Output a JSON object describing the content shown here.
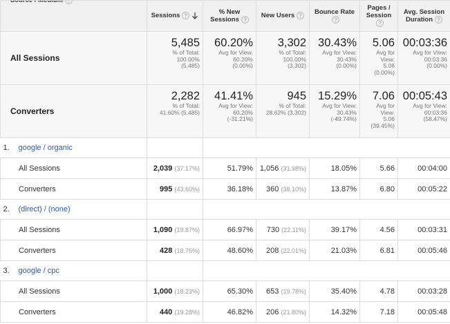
{
  "header": {
    "columns": [
      "Source / Medium",
      "Sessions",
      "% New Sessions",
      "New Users",
      "Bounce Rate",
      "Pages / Session",
      "Avg. Session Duration"
    ]
  },
  "summary": [
    {
      "label": "All Sessions",
      "cells": [
        {
          "main": "5,485",
          "sub": [
            "% of Total:",
            "100.00%",
            "(5,485)"
          ]
        },
        {
          "main": "60.20%",
          "sub": [
            "Avg for View:",
            "60.20%",
            "(0.00%)"
          ]
        },
        {
          "main": "3,302",
          "sub": [
            "% of Total:",
            "100.00%",
            "(3,302)"
          ]
        },
        {
          "main": "30.43%",
          "sub": [
            "Avg for View:",
            "30.43%",
            "(0.00%)"
          ]
        },
        {
          "main": "5.06",
          "sub": [
            "Avg for",
            "View:",
            "5.06",
            "(0.00%)"
          ]
        },
        {
          "main": "00:03:36",
          "sub": [
            "Avg for View:",
            "00:03:36",
            "(0.00%)"
          ]
        }
      ]
    },
    {
      "label": "Converters",
      "cells": [
        {
          "main": "2,282",
          "sub": [
            "% of Total:",
            "41.60% (5,485)"
          ]
        },
        {
          "main": "41.41%",
          "sub": [
            "Avg for View:",
            "60.20%",
            "(-31.21%)"
          ]
        },
        {
          "main": "945",
          "sub": [
            "% of Total:",
            "28.62% (3,302)"
          ]
        },
        {
          "main": "15.29%",
          "sub": [
            "Avg for View:",
            "30.43%",
            "(-49.74%)"
          ]
        },
        {
          "main": "7.06",
          "sub": [
            "Avg for",
            "View:",
            "5.06",
            "(39.45%)"
          ]
        },
        {
          "main": "00:05:43",
          "sub": [
            "Avg for View:",
            "00:03:36",
            "(58.47%)"
          ]
        }
      ]
    }
  ],
  "groups": [
    {
      "index": "1.",
      "source": "google / organic",
      "rows": [
        {
          "label": "All Sessions",
          "cells": [
            {
              "value": "2,039",
              "pct": "(37.17%)"
            },
            {
              "value": "51.79%"
            },
            {
              "value": "1,056",
              "pct": "(31.98%)"
            },
            {
              "value": "18.05%"
            },
            {
              "value": "5.66"
            },
            {
              "value": "00:04:00"
            }
          ]
        },
        {
          "label": "Converters",
          "cells": [
            {
              "value": "995",
              "pct": "(43.60%)"
            },
            {
              "value": "36.18%"
            },
            {
              "value": "360",
              "pct": "(38.10%)"
            },
            {
              "value": "13.87%"
            },
            {
              "value": "6.80"
            },
            {
              "value": "00:05:22"
            }
          ]
        }
      ]
    },
    {
      "index": "2.",
      "source": "(direct) / (none)",
      "rows": [
        {
          "label": "All Sessions",
          "cells": [
            {
              "value": "1,090",
              "pct": "(19.87%)"
            },
            {
              "value": "66.97%"
            },
            {
              "value": "730",
              "pct": "(22.11%)"
            },
            {
              "value": "39.17%"
            },
            {
              "value": "4.56"
            },
            {
              "value": "00:03:31"
            }
          ]
        },
        {
          "label": "Converters",
          "cells": [
            {
              "value": "428",
              "pct": "(18.76%)"
            },
            {
              "value": "48.60%"
            },
            {
              "value": "208",
              "pct": "(22.01%)"
            },
            {
              "value": "21.03%"
            },
            {
              "value": "6.81"
            },
            {
              "value": "00:05:46"
            }
          ]
        }
      ]
    },
    {
      "index": "3.",
      "source": "google / cpc",
      "rows": [
        {
          "label": "All Sessions",
          "cells": [
            {
              "value": "1,000",
              "pct": "(18.23%)"
            },
            {
              "value": "65.30%"
            },
            {
              "value": "653",
              "pct": "(19.78%)"
            },
            {
              "value": "35.40%"
            },
            {
              "value": "4.78"
            },
            {
              "value": "00:03:28"
            }
          ]
        },
        {
          "label": "Converters",
          "cells": [
            {
              "value": "440",
              "pct": "(19.28%)"
            },
            {
              "value": "46.82%"
            },
            {
              "value": "206",
              "pct": "(21.80%)"
            },
            {
              "value": "14.32%"
            },
            {
              "value": "7.18"
            },
            {
              "value": "00:05:48"
            }
          ]
        }
      ]
    }
  ]
}
